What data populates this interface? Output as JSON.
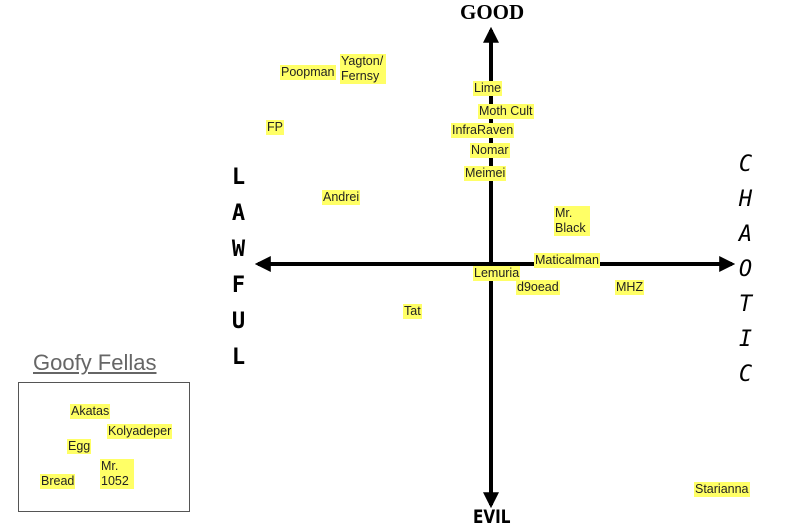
{
  "axes": {
    "top": "GOOD",
    "bottom": "EVIL",
    "left": "LAWFUL",
    "right": "CHAOTIC"
  },
  "names": [
    "Poopman",
    "Yagton/ Fernsy",
    "FP",
    "Lime",
    "Moth Cult",
    "InfraRaven",
    "Nomar",
    "Meimei",
    "Andrei",
    "Mr. Black",
    "Maticalman",
    "Lemuria",
    "d9oead",
    "MHZ",
    "Tat",
    "Starianna"
  ],
  "goofy_fellas": {
    "title": "Goofy Fellas",
    "names": [
      "Akatas",
      "Kolyadeper",
      "Egg",
      "Mr. 1052",
      "Bread"
    ]
  }
}
